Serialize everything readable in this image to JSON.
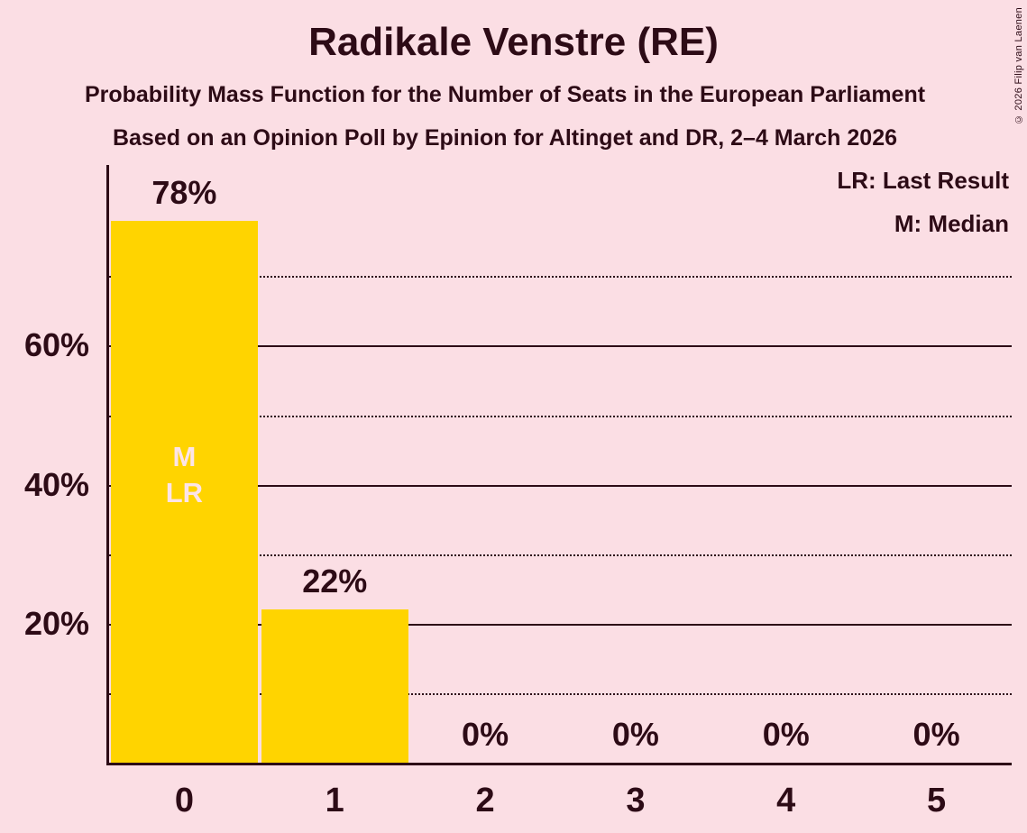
{
  "colors": {
    "background": "#fbdee4",
    "bar": "#ffd400",
    "ink": "#2d0b16",
    "annotation_text": "#fce4e8"
  },
  "copyright_notice": "© 2026 Filip van Laenen",
  "chart_data": {
    "type": "bar",
    "title": "Radikale Venstre (RE)",
    "subtitle": "Probability Mass Function for the Number of Seats in the European Parliament",
    "subsubtitle": "Based on an Opinion Poll by Epinion for Altinget and DR, 2–4 March 2026",
    "xlabel": "",
    "ylabel": "",
    "categories": [
      "0",
      "1",
      "2",
      "3",
      "4",
      "5"
    ],
    "values": [
      78,
      22,
      0,
      0,
      0,
      0
    ],
    "value_labels": [
      "78%",
      "22%",
      "0%",
      "0%",
      "0%",
      "0%"
    ],
    "ylim": [
      0,
      86
    ],
    "yticks_labeled": [
      {
        "pct": 20,
        "label": "20%"
      },
      {
        "pct": 40,
        "label": "40%"
      },
      {
        "pct": 60,
        "label": "60%"
      }
    ],
    "yticks_dotted": [
      10,
      30,
      50,
      70
    ],
    "grid": "horizontal-only",
    "legend_position": "top-right",
    "legend": [
      {
        "abbr": "LR",
        "label": "LR: Last Result"
      },
      {
        "abbr": "M",
        "label": "M: Median"
      }
    ],
    "bar_annotations": [
      {
        "category_index": 0,
        "lines": [
          "M",
          "LR"
        ]
      }
    ]
  }
}
